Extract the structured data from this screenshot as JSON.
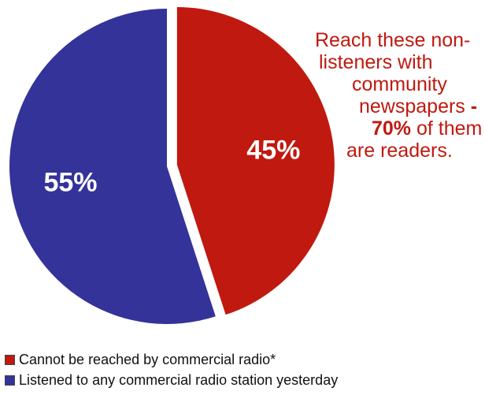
{
  "chart_data": {
    "type": "pie",
    "slices": [
      {
        "label": "Cannot be reached by commercial radio*",
        "value": 45,
        "value_label": "45%",
        "color": "#c0190f",
        "exploded": true
      },
      {
        "label": "Listened to any commercial radio station yesterday",
        "value": 55,
        "value_label": "55%",
        "color": "#333399",
        "exploded": false
      }
    ],
    "start": "12 o'clock, clockwise",
    "legend_position": "bottom-left",
    "annotation": {
      "color": "#c0190f",
      "lines": [
        {
          "parts": [
            {
              "text": "Reach these non-",
              "bold": false
            }
          ]
        },
        {
          "parts": [
            {
              "text": "listeners with",
              "bold": false
            }
          ]
        },
        {
          "parts": [
            {
              "text": "community",
              "bold": false
            }
          ]
        },
        {
          "parts": [
            {
              "text": "newspapers ",
              "bold": false
            },
            {
              "text": "-",
              "bold": true
            }
          ]
        },
        {
          "parts": [
            {
              "text": "70%",
              "bold": true
            },
            {
              "text": " of them",
              "bold": false
            }
          ]
        },
        {
          "parts": [
            {
              "text": "are readers.",
              "bold": false
            }
          ]
        }
      ]
    }
  }
}
